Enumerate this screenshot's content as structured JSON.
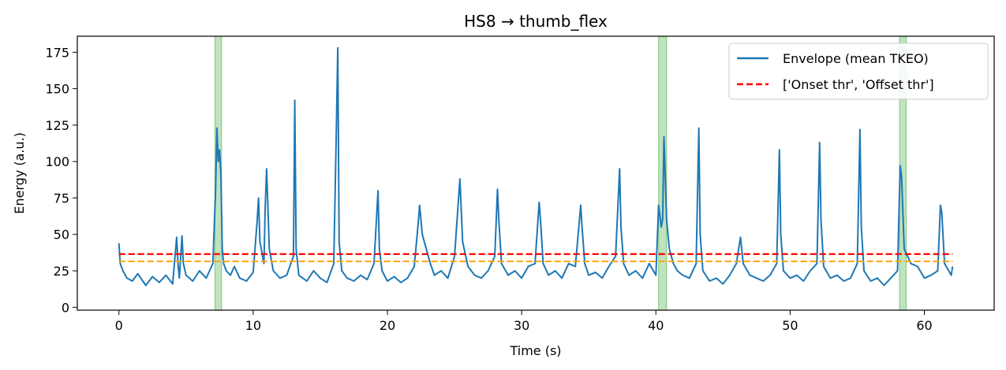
{
  "chart_data": {
    "type": "line",
    "title": "HS8 → thumb_flex",
    "xlabel": "Time (s)",
    "ylabel": "Energy (a.u.)",
    "xlim": [
      -3.1,
      65.2
    ],
    "ylim": [
      -2,
      186
    ],
    "xticks": [
      0,
      10,
      20,
      30,
      40,
      50,
      60
    ],
    "yticks": [
      0,
      25,
      50,
      75,
      100,
      125,
      150,
      175
    ],
    "grid": false,
    "legend_position": "top-right",
    "series": [
      {
        "name": "Envelope (mean TKEO)",
        "style": "solid",
        "color": "#1f77b4",
        "x": [
          0,
          0.1,
          0.3,
          0.6,
          1,
          1.4,
          2,
          2.5,
          3,
          3.5,
          4,
          4.3,
          4.4,
          4.5,
          4.7,
          4.8,
          5,
          5.5,
          6,
          6.5,
          7,
          7.2,
          7.3,
          7.4,
          7.5,
          7.6,
          7.7,
          7.8,
          8,
          8.3,
          8.6,
          9,
          9.5,
          10,
          10.3,
          10.4,
          10.5,
          10.8,
          10.9,
          11,
          11.2,
          11.5,
          12,
          12.5,
          13,
          13.1,
          13.2,
          13.4,
          14,
          14.5,
          15,
          15.5,
          16,
          16.2,
          16.3,
          16.4,
          16.6,
          17,
          17.5,
          18,
          18.5,
          19,
          19.3,
          19.4,
          19.6,
          20,
          20.5,
          21,
          21.5,
          22,
          22.3,
          22.4,
          22.6,
          22.9,
          23.2,
          23.5,
          24,
          24.5,
          25,
          25.3,
          25.4,
          25.6,
          26,
          26.5,
          27,
          27.5,
          28,
          28.2,
          28.3,
          28.5,
          29,
          29.5,
          30,
          30.5,
          31,
          31.3,
          31.4,
          31.6,
          32,
          32.5,
          33,
          33.5,
          34,
          34.4,
          34.5,
          34.7,
          35,
          35.5,
          36,
          36.5,
          37,
          37.3,
          37.4,
          37.6,
          38,
          38.5,
          39,
          39.5,
          40,
          40.2,
          40.4,
          40.5,
          40.6,
          40.8,
          41,
          41.3,
          41.6,
          42,
          42.5,
          43,
          43.2,
          43.3,
          43.5,
          44,
          44.5,
          45,
          45.5,
          46,
          46.3,
          46.5,
          47,
          47.5,
          48,
          48.5,
          49,
          49.2,
          49.3,
          49.5,
          50,
          50.5,
          51,
          51.5,
          52,
          52.2,
          52.3,
          52.5,
          53,
          53.5,
          54,
          54.5,
          55,
          55.2,
          55.3,
          55.5,
          56,
          56.5,
          57,
          57.5,
          58,
          58.2,
          58.3,
          58.5,
          59,
          59.5,
          60,
          60.5,
          61,
          61.2,
          61.3,
          61.5,
          62,
          62.1
        ],
        "y": [
          44,
          30,
          25,
          20,
          18,
          23,
          15,
          21,
          17,
          22,
          16,
          48,
          30,
          20,
          49,
          30,
          22,
          18,
          25,
          20,
          30,
          80,
          123,
          100,
          108,
          90,
          40,
          30,
          25,
          22,
          28,
          20,
          18,
          24,
          60,
          75,
          45,
          30,
          70,
          95,
          40,
          25,
          20,
          22,
          35,
          142,
          40,
          22,
          18,
          25,
          20,
          17,
          30,
          125,
          178,
          45,
          25,
          20,
          18,
          22,
          19,
          30,
          80,
          40,
          25,
          18,
          21,
          17,
          20,
          28,
          58,
          70,
          50,
          40,
          30,
          22,
          25,
          20,
          35,
          75,
          88,
          45,
          28,
          22,
          20,
          25,
          35,
          81,
          60,
          30,
          22,
          25,
          20,
          28,
          30,
          72,
          60,
          30,
          22,
          25,
          20,
          30,
          28,
          70,
          55,
          30,
          22,
          24,
          20,
          28,
          35,
          95,
          55,
          30,
          22,
          25,
          20,
          30,
          22,
          70,
          55,
          60,
          117,
          60,
          40,
          30,
          25,
          22,
          20,
          30,
          123,
          50,
          25,
          18,
          20,
          16,
          22,
          30,
          48,
          30,
          22,
          20,
          18,
          22,
          30,
          108,
          50,
          25,
          20,
          22,
          18,
          25,
          30,
          113,
          60,
          28,
          20,
          22,
          18,
          20,
          30,
          122,
          55,
          25,
          18,
          20,
          15,
          20,
          25,
          97,
          90,
          40,
          30,
          28,
          20,
          22,
          25,
          70,
          65,
          30,
          22,
          28
        ]
      },
      {
        "name": "['Onset thr', 'Offset thr']",
        "style": "dashed",
        "color": "#ff0000",
        "x": [
          0,
          62.1
        ],
        "y": [
          36.5,
          36.5
        ]
      },
      {
        "name": "",
        "style": "dashed",
        "color": "#ffa500",
        "x": [
          0,
          62.1
        ],
        "y": [
          31.5,
          31.5
        ]
      }
    ],
    "highlight_spans": [
      {
        "x0": 7.15,
        "x1": 7.65,
        "color": "#2ca02c"
      },
      {
        "x0": 40.2,
        "x1": 40.8,
        "color": "#2ca02c"
      },
      {
        "x0": 58.15,
        "x1": 58.65,
        "color": "#2ca02c"
      }
    ]
  }
}
